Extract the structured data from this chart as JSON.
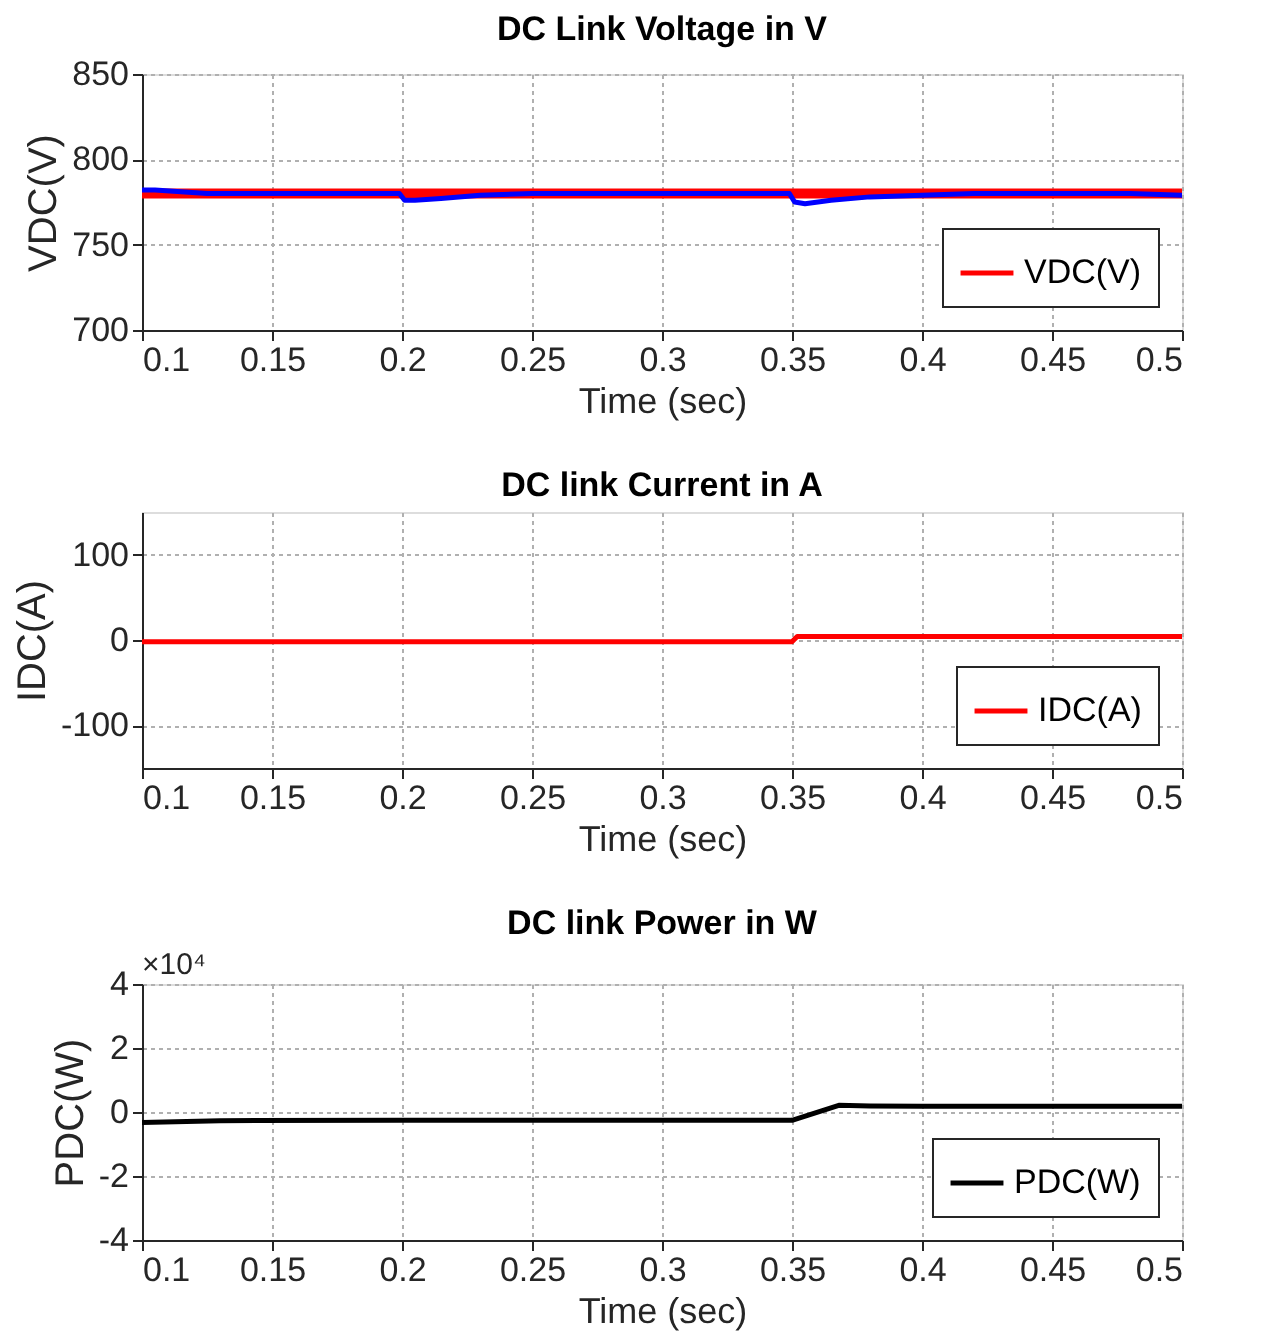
{
  "chart_data": [
    {
      "type": "line",
      "title": "DC Link Voltage in V",
      "xlabel": "Time (sec)",
      "ylabel": "VDC(V)",
      "xlim": [
        0.1,
        0.5
      ],
      "xticks": [
        0.1,
        0.15,
        0.2,
        0.25,
        0.3,
        0.35,
        0.4,
        0.45,
        0.5
      ],
      "ylim": [
        700,
        850
      ],
      "yticks": [
        700,
        750,
        800,
        850
      ],
      "grid": true,
      "legend": "bottom right",
      "series": [
        {
          "name": "VDC(V)",
          "color": "#ff0000",
          "x": [
            0.1,
            0.5
          ],
          "values": [
            780,
            780
          ]
        },
        {
          "color": "#0000ff",
          "x": [
            0.1,
            0.105,
            0.115,
            0.125,
            0.15,
            0.199,
            0.201,
            0.205,
            0.215,
            0.23,
            0.25,
            0.3,
            0.349,
            0.351,
            0.355,
            0.365,
            0.38,
            0.4,
            0.42,
            0.45,
            0.48,
            0.5
          ],
          "values": [
            782,
            782,
            781,
            780,
            780,
            780,
            776,
            776,
            777,
            779,
            780,
            780,
            780,
            775,
            774,
            776,
            778,
            779,
            780,
            780,
            780,
            779
          ]
        }
      ]
    },
    {
      "type": "line",
      "title": "DC link Current in A",
      "xlabel": "Time (sec)",
      "ylabel": "IDC(A)",
      "xlim": [
        0.1,
        0.5
      ],
      "xticks": [
        0.1,
        0.15,
        0.2,
        0.25,
        0.3,
        0.35,
        0.4,
        0.45,
        0.5
      ],
      "ylim": [
        -150,
        150
      ],
      "yticks": [
        -100,
        0,
        100
      ],
      "grid": true,
      "legend": "bottom right",
      "series": [
        {
          "name": "IDC(A)",
          "color": "#ff0000",
          "x": [
            0.1,
            0.2,
            0.3,
            0.35,
            0.352,
            0.4,
            0.5
          ],
          "values": [
            -2,
            -2,
            -2,
            -2,
            4,
            4,
            4
          ]
        }
      ]
    },
    {
      "type": "line",
      "title": "DC link Power in W",
      "xlabel": "Time (sec)",
      "ylabel": "PDC(W)",
      "xlim": [
        0.1,
        0.5
      ],
      "xticks": [
        0.1,
        0.15,
        0.2,
        0.25,
        0.3,
        0.35,
        0.4,
        0.45,
        0.5
      ],
      "ylim": [
        -4,
        4
      ],
      "yticks": [
        -4,
        -2,
        0,
        2,
        4
      ],
      "grid": true,
      "legend": "bottom right",
      "annotations": [
        "×10⁴"
      ],
      "series": [
        {
          "name": "PDC(W)",
          "color": "#000000",
          "x": [
            0.1,
            0.13,
            0.2,
            0.3,
            0.35,
            0.368,
            0.38,
            0.4,
            0.5
          ],
          "values": [
            -0.33,
            -0.27,
            -0.26,
            -0.26,
            -0.26,
            0.21,
            0.19,
            0.18,
            0.18
          ]
        }
      ]
    }
  ]
}
